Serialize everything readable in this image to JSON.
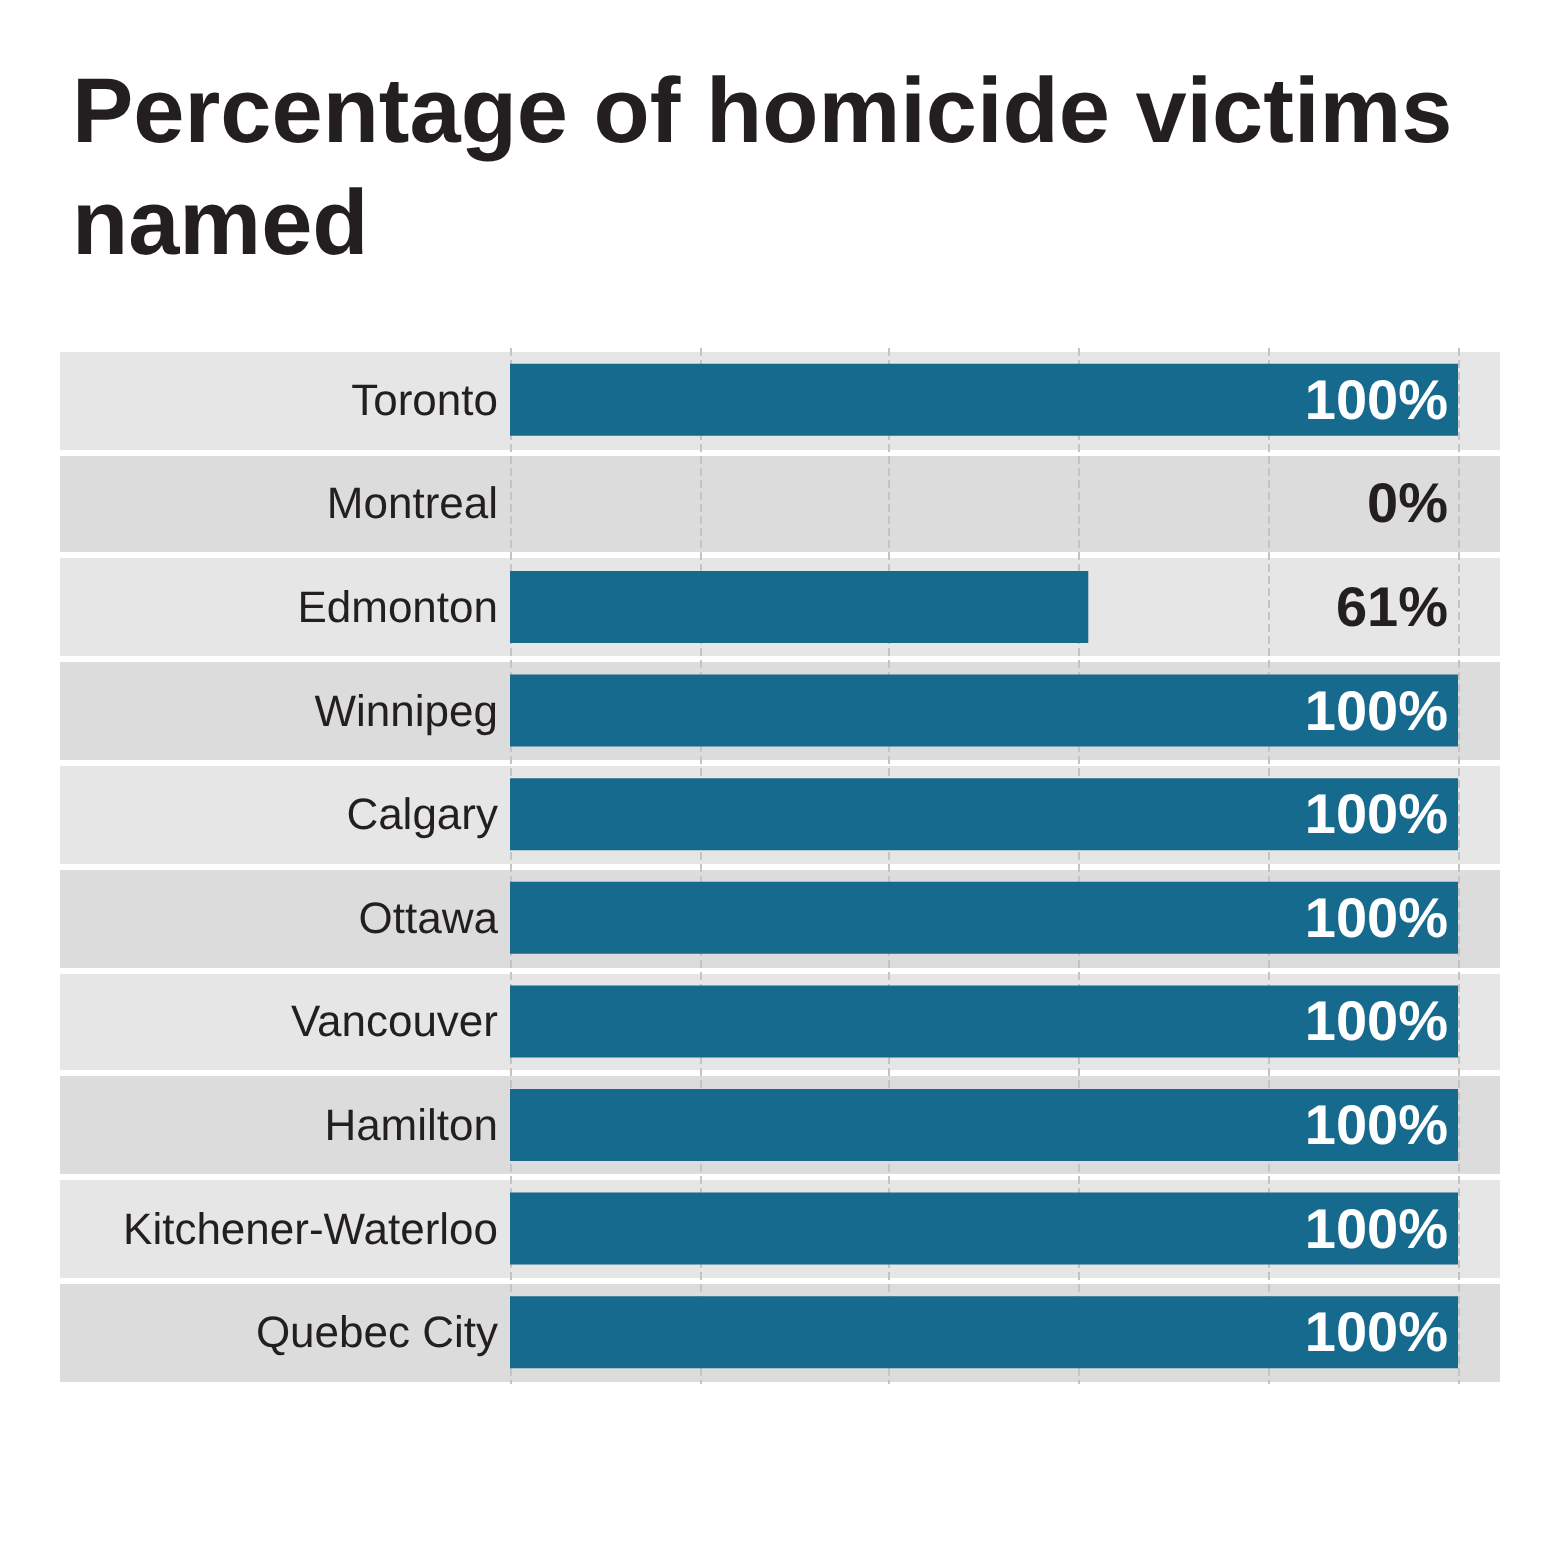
{
  "chart_data": {
    "type": "bar",
    "title": "Percentage of homicide victims named",
    "orientation": "horizontal",
    "categories": [
      "Toronto",
      "Montreal",
      "Edmonton",
      "Winnipeg",
      "Calgary",
      "Ottawa",
      "Vancouver",
      "Hamilton",
      "Kitchener-Waterloo",
      "Quebec City"
    ],
    "values": [
      100,
      0,
      61,
      100,
      100,
      100,
      100,
      100,
      100,
      100
    ],
    "value_labels": [
      "100%",
      "0%",
      "61%",
      "100%",
      "100%",
      "100%",
      "100%",
      "100%",
      "100%",
      "100%"
    ],
    "color": "#166a8e",
    "xlim": [
      0,
      100
    ],
    "xticks": [
      {
        "value": 0,
        "label": null
      },
      {
        "value": 20,
        "label": null
      },
      {
        "value": 40,
        "label": null
      },
      {
        "value": 60,
        "label": null
      },
      {
        "value": 80,
        "label": null
      },
      {
        "value": 100,
        "label": null
      }
    ],
    "grid": "x",
    "tick_labels": "y"
  }
}
